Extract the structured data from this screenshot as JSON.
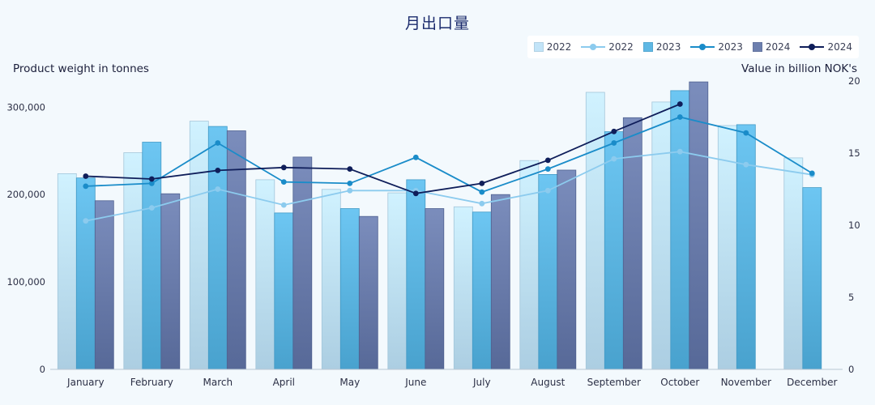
{
  "chart_data": {
    "type": "bar",
    "title": "月出口量",
    "ylabel_left": "Product weight in tonnes",
    "ylabel_right": "Value in billion NOK's",
    "categories": [
      "January",
      "February",
      "March",
      "April",
      "May",
      "June",
      "July",
      "August",
      "September",
      "October",
      "November",
      "December"
    ],
    "y_left": {
      "range": [
        0,
        330000
      ],
      "ticks": [
        0,
        100000,
        200000,
        300000
      ],
      "tick_labels": [
        "0",
        "100,000",
        "200,000",
        "300,000"
      ]
    },
    "y_right": {
      "range": [
        0,
        20
      ],
      "ticks": [
        0,
        5,
        10,
        15,
        20
      ],
      "tick_labels": [
        "0",
        "5",
        "10",
        "15",
        "20"
      ]
    },
    "bar_series": [
      {
        "name": "2022",
        "color": "#c2e4f8",
        "values": [
          224000,
          248000,
          284000,
          217000,
          206000,
          202000,
          186000,
          239000,
          317000,
          306000,
          279000,
          242000
        ]
      },
      {
        "name": "2023",
        "color": "#5fb8e4",
        "values": [
          219000,
          260000,
          278000,
          179000,
          184000,
          217000,
          180000,
          223000,
          272000,
          319000,
          280000,
          208000
        ]
      },
      {
        "name": "2024",
        "color": "#6d7fae",
        "values": [
          193000,
          201000,
          273000,
          243000,
          175000,
          184000,
          200000,
          228000,
          288000,
          329000,
          null,
          null
        ]
      }
    ],
    "line_series": [
      {
        "name": "2022",
        "color": "#8ccbee",
        "values": [
          10.3,
          11.2,
          12.5,
          11.4,
          12.4,
          12.4,
          11.5,
          12.4,
          14.6,
          15.1,
          14.2,
          13.5
        ]
      },
      {
        "name": "2023",
        "color": "#1a8cc9",
        "values": [
          12.7,
          12.9,
          15.7,
          13.0,
          12.9,
          14.7,
          12.3,
          13.9,
          15.7,
          17.5,
          16.4,
          13.6
        ]
      },
      {
        "name": "2024",
        "color": "#0f1e5a",
        "values": [
          13.4,
          13.2,
          13.8,
          14.0,
          13.9,
          12.2,
          12.9,
          14.5,
          16.5,
          18.4,
          null,
          null
        ]
      }
    ],
    "legend_position": "top-right",
    "grid": false
  }
}
